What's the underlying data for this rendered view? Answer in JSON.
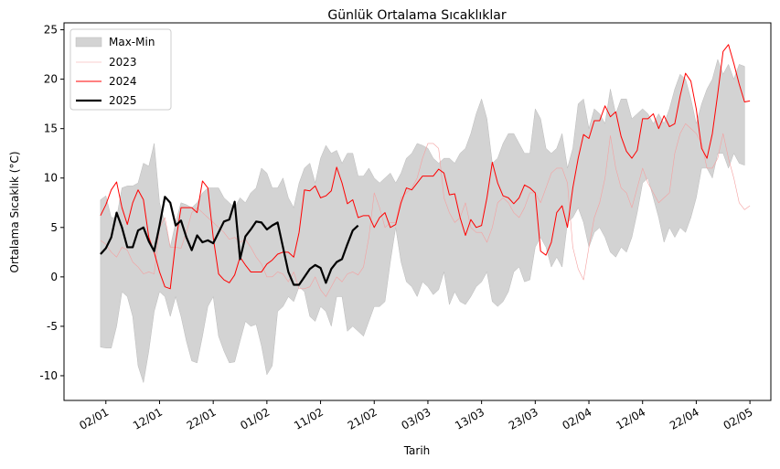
{
  "chart_data": {
    "type": "line",
    "title": "Günlük Ortalama Sıcaklıklar",
    "xlabel": "Tarih",
    "ylabel": "Ortalama Sıcaklık (°C)",
    "x": [
      "01/01",
      "02/01",
      "03/01",
      "04/01",
      "05/01",
      "06/01",
      "07/01",
      "08/01",
      "09/01",
      "10/01",
      "11/01",
      "12/01",
      "13/01",
      "14/01",
      "15/01",
      "16/01",
      "17/01",
      "18/01",
      "19/01",
      "20/01",
      "21/01",
      "22/01",
      "23/01",
      "24/01",
      "25/01",
      "26/01",
      "27/01",
      "28/01",
      "29/01",
      "30/01",
      "31/01",
      "01/02",
      "02/02",
      "03/02",
      "04/02",
      "05/02",
      "06/02",
      "07/02",
      "08/02",
      "09/02",
      "10/02",
      "11/02",
      "12/02",
      "13/02",
      "14/02",
      "15/02",
      "16/02",
      "17/02",
      "18/02",
      "19/02",
      "20/02",
      "21/02",
      "22/02",
      "23/02",
      "24/02",
      "25/02",
      "26/02",
      "27/02",
      "28/02",
      "01/03",
      "02/03",
      "03/03",
      "04/03",
      "05/03",
      "06/03",
      "07/03",
      "08/03",
      "09/03",
      "10/03",
      "11/03",
      "12/03",
      "13/03",
      "14/03",
      "15/03",
      "16/03",
      "17/03",
      "18/03",
      "19/03",
      "20/03",
      "21/03",
      "22/03",
      "23/03",
      "24/03",
      "25/03",
      "26/03",
      "27/03",
      "28/03",
      "29/03",
      "30/03",
      "31/03",
      "01/04",
      "02/04",
      "03/04",
      "04/04",
      "05/04",
      "06/04",
      "07/04",
      "08/04",
      "09/04",
      "10/04",
      "11/04",
      "12/04",
      "13/04",
      "14/04",
      "15/04",
      "16/04",
      "17/04",
      "18/04",
      "19/04",
      "20/04",
      "21/04",
      "22/04",
      "23/04",
      "24/04",
      "25/04",
      "26/04",
      "27/04",
      "28/04",
      "29/04",
      "30/04",
      "01/05",
      "02/05"
    ],
    "xticks": [
      "02/01",
      "12/01",
      "22/01",
      "01/02",
      "11/02",
      "21/02",
      "03/03",
      "13/03",
      "23/03",
      "02/04",
      "12/04",
      "22/04",
      "02/05"
    ],
    "ylim": [
      -12.5,
      25.7
    ],
    "yticks": [
      -10,
      -5,
      0,
      5,
      10,
      15,
      20,
      25
    ],
    "legend": "upper left",
    "band": {
      "name": "Max-Min",
      "color": "#d3d3d3",
      "upper": [
        7.8,
        8.2,
        6,
        6,
        9,
        9.2,
        9.2,
        9.5,
        11.5,
        11.2,
        13.5,
        7.5,
        5.5,
        3,
        5.5,
        7.5,
        7.3,
        7,
        7.5,
        8.5,
        9,
        9,
        9,
        8,
        7.5,
        7,
        8,
        7.5,
        8.5,
        9,
        11,
        10.5,
        9,
        9,
        10,
        8,
        7,
        9.5,
        11,
        11.5,
        9.5,
        12,
        13.3,
        12.5,
        12.8,
        11.5,
        12.5,
        12.5,
        10.2,
        10.2,
        11,
        10,
        9.5,
        10,
        10.5,
        9.5,
        10.5,
        12,
        12.5,
        13.5,
        13.3,
        13,
        12,
        11.5,
        12,
        12,
        11.5,
        12.5,
        13,
        14.5,
        16.5,
        18,
        16,
        11.5,
        12,
        13.5,
        14.5,
        14.5,
        13.5,
        12.5,
        12.5,
        17,
        16,
        13,
        12.5,
        13,
        14.5,
        11,
        13,
        17.5,
        18,
        15,
        17,
        16.5,
        15.5,
        19,
        16.5,
        18,
        18,
        16,
        16.5,
        17,
        16.5,
        15.5,
        16.5,
        15.5,
        17,
        19,
        20.5,
        20,
        18,
        15.5,
        17.5,
        19,
        20,
        22,
        20.5,
        21.5,
        20,
        21.5,
        21.3,
        null
      ],
      "lower": [
        -7.1,
        -7.2,
        -7.2,
        -5,
        -1.5,
        -2,
        -4,
        -9,
        -10.7,
        -7.5,
        -3.5,
        -1.5,
        -2,
        -4,
        -2,
        -4,
        -6.5,
        -8.5,
        -8.7,
        -6,
        -3,
        -2,
        -6,
        -7.5,
        -8.7,
        -8.6,
        -6.5,
        -4.5,
        -5,
        -4.8,
        -7,
        -9.9,
        -9,
        -3.5,
        -3,
        -2,
        -2.5,
        -1,
        -1.5,
        -4,
        -4.5,
        -3,
        -3.5,
        -5,
        -2,
        -2,
        -5.5,
        -5,
        -5.5,
        -6,
        -4.5,
        -3,
        -3,
        -2.5,
        1.5,
        5,
        1.5,
        -0.5,
        -1,
        -2,
        -0.5,
        -1,
        -1.8,
        -1.3,
        0.5,
        -2.8,
        -1.5,
        -2.5,
        -2.8,
        -2,
        -1,
        -0.5,
        0.5,
        -2.5,
        -3,
        -2.5,
        -1.5,
        0.5,
        1,
        -0.5,
        -0.3,
        3,
        4,
        3,
        1,
        2,
        1,
        5.5,
        6,
        7,
        5.5,
        3,
        4.5,
        5,
        4,
        2.5,
        2,
        3,
        2.5,
        4,
        6.5,
        9.5,
        10,
        8,
        6,
        3.5,
        5,
        4,
        5,
        4.5,
        6,
        8,
        11,
        11,
        10,
        12.5,
        12.5,
        11,
        12.5,
        11.5,
        11.3,
        null
      ]
    },
    "series": [
      {
        "name": "2023",
        "color": "#f4a0a0",
        "width": 0.6,
        "values": [
          3.7,
          3.3,
          2.5,
          2,
          3,
          2.7,
          1.5,
          1,
          0.3,
          0.5,
          0.3,
          5,
          6,
          3,
          3,
          2.9,
          4.5,
          6.5,
          7,
          6.5,
          6,
          5.5,
          5,
          4.5,
          3.8,
          4,
          3.5,
          3.8,
          3,
          2,
          1.3,
          0,
          0,
          0.5,
          0.3,
          -0.5,
          0.5,
          -1.2,
          -1.2,
          -1,
          0,
          -1.3,
          -2,
          -1,
          0,
          -0.5,
          0.3,
          0.5,
          0.2,
          1,
          4,
          8.5,
          7,
          5,
          5.5,
          5.5,
          8,
          8.5,
          9,
          10,
          12,
          13.5,
          13.5,
          13,
          8,
          6.5,
          5.5,
          6,
          7.5,
          5,
          4.5,
          4.5,
          3.5,
          5,
          7.5,
          8,
          7.5,
          6.5,
          6,
          7,
          8.5,
          8.5,
          7.5,
          9,
          10.5,
          11,
          11,
          9.5,
          3,
          0.8,
          -0.3,
          3,
          6,
          7.5,
          10,
          14.3,
          11,
          9,
          8.5,
          7,
          9,
          11,
          9.5,
          8.5,
          7.5,
          8,
          8.5,
          12.5,
          14.5,
          15.5,
          15,
          14.5,
          13.5,
          11,
          11,
          12,
          14.5,
          12,
          10,
          7.5,
          6.8,
          7.2
        ]
      },
      {
        "name": "2024",
        "color": "#ff0000",
        "width": 1,
        "values": [
          6.2,
          7.3,
          8.8,
          9.6,
          7,
          5.3,
          7.5,
          8.8,
          7.8,
          4,
          2.5,
          0.5,
          -1,
          -1.2,
          3.5,
          7,
          7,
          7,
          6.5,
          9.7,
          9,
          4,
          0.3,
          -0.3,
          -0.6,
          0.2,
          2,
          1.2,
          0.5,
          0.5,
          0.5,
          1.3,
          1.7,
          2.3,
          2.5,
          2.5,
          2,
          4.5,
          8.8,
          8.7,
          9.2,
          8,
          8.2,
          8.7,
          11.1,
          9.5,
          7.4,
          7.8,
          6,
          6.2,
          6.2,
          5,
          6,
          6.5,
          5,
          5.3,
          7.5,
          9,
          8.8,
          9.5,
          10.2,
          10.2,
          10.2,
          10.9,
          10.5,
          8.3,
          8.4,
          6,
          4.2,
          5.8,
          5,
          5.2,
          8,
          11.6,
          9.5,
          8.2,
          8,
          7.4,
          8,
          9.3,
          9,
          8.5,
          2.6,
          2.2,
          3.5,
          6.5,
          7.2,
          5,
          9,
          12,
          14.4,
          14,
          15.8,
          15.8,
          17.3,
          16.2,
          16.7,
          14.2,
          12.7,
          12,
          12.8,
          16,
          16,
          16.5,
          15,
          16.3,
          15.2,
          15.5,
          18.3,
          20.6,
          19.8,
          17,
          13,
          12,
          14.5,
          18.5,
          22.8,
          23.5,
          21.6,
          19.5,
          17.7,
          17.8
        ]
      },
      {
        "name": "2025",
        "color": "#000000",
        "width": 2.2,
        "values": [
          2.3,
          2.9,
          4,
          6.5,
          5,
          3,
          3,
          4.7,
          5,
          3.6,
          2.6,
          5.2,
          8.1,
          7.5,
          5.2,
          5.7,
          4,
          2.7,
          4.2,
          3.5,
          3.7,
          3.4,
          4.5,
          5.6,
          5.8,
          7.6,
          1.8,
          4.1,
          4.8,
          5.6,
          5.5,
          4.8,
          5.2,
          5.5,
          3,
          0.5,
          -0.8,
          -0.8,
          0,
          0.8,
          1.2,
          0.9,
          -0.6,
          0.8,
          1.5,
          1.8,
          3.3,
          4.7,
          5.2,
          null,
          null,
          null,
          null,
          null,
          null,
          null,
          null,
          null,
          null,
          null,
          null,
          null,
          null,
          null,
          null,
          null,
          null,
          null,
          null,
          null,
          null,
          null,
          null,
          null,
          null,
          null,
          null,
          null,
          null,
          null,
          null,
          null,
          null,
          null,
          null,
          null,
          null,
          null,
          null,
          null,
          null,
          null,
          null,
          null,
          null,
          null,
          null,
          null,
          null,
          null,
          null,
          null,
          null,
          null,
          null,
          null,
          null,
          null,
          null,
          null,
          null,
          null,
          null,
          null,
          null,
          null,
          null,
          null,
          null,
          null,
          null,
          null
        ]
      }
    ]
  }
}
